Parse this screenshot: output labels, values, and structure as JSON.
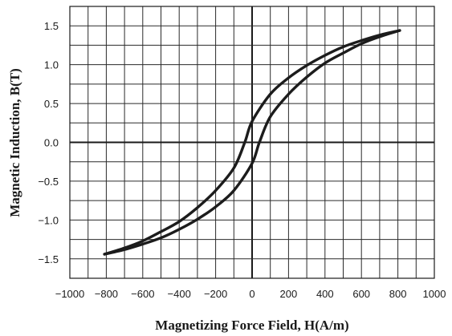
{
  "chart_data": {
    "type": "line",
    "title": "",
    "xlabel": "Magnetizing Force Field, H(A/m)",
    "ylabel": "Magnetic Induction, B(T)",
    "xlim": [
      -1000,
      1000
    ],
    "ylim": [
      -1.75,
      1.75
    ],
    "x_ticks": [
      -1000,
      -800,
      -600,
      -400,
      -200,
      0,
      200,
      400,
      600,
      800,
      1000
    ],
    "x_tick_labels": [
      "−1000",
      "−800",
      "−600",
      "−400",
      "−200",
      "0",
      "200",
      "400",
      "600",
      "800",
      "1000"
    ],
    "y_ticks": [
      -1.5,
      -1.0,
      -0.5,
      0.0,
      0.5,
      1.0,
      1.5
    ],
    "y_tick_labels": [
      "−1.5",
      "−1.0",
      "−0.5",
      "0.0",
      "0.5",
      "1.0",
      "1.5"
    ],
    "grid": true,
    "x_grid_step": 100,
    "y_grid_step": 0.25,
    "line_color": "#1c1c1c",
    "series": [
      {
        "points": [
          [
            810,
            1.44
          ],
          [
            700,
            1.38
          ],
          [
            600,
            1.31
          ],
          [
            500,
            1.23
          ],
          [
            400,
            1.12
          ],
          [
            300,
            0.99
          ],
          [
            200,
            0.83
          ],
          [
            100,
            0.62
          ],
          [
            0,
            0.27
          ],
          [
            -40,
            0.0
          ],
          [
            -100,
            -0.33
          ],
          [
            -200,
            -0.62
          ],
          [
            -300,
            -0.84
          ],
          [
            -400,
            -1.02
          ],
          [
            -500,
            -1.15
          ],
          [
            -600,
            -1.27
          ],
          [
            -700,
            -1.36
          ],
          [
            -810,
            -1.44
          ]
        ]
      },
      {
        "points": [
          [
            -810,
            -1.44
          ],
          [
            -700,
            -1.38
          ],
          [
            -600,
            -1.31
          ],
          [
            -500,
            -1.23
          ],
          [
            -400,
            -1.12
          ],
          [
            -300,
            -0.99
          ],
          [
            -200,
            -0.83
          ],
          [
            -100,
            -0.62
          ],
          [
            0,
            -0.27
          ],
          [
            40,
            0.0
          ],
          [
            100,
            0.33
          ],
          [
            200,
            0.62
          ],
          [
            300,
            0.84
          ],
          [
            400,
            1.02
          ],
          [
            500,
            1.15
          ],
          [
            600,
            1.27
          ],
          [
            700,
            1.36
          ],
          [
            810,
            1.44
          ]
        ]
      }
    ]
  }
}
